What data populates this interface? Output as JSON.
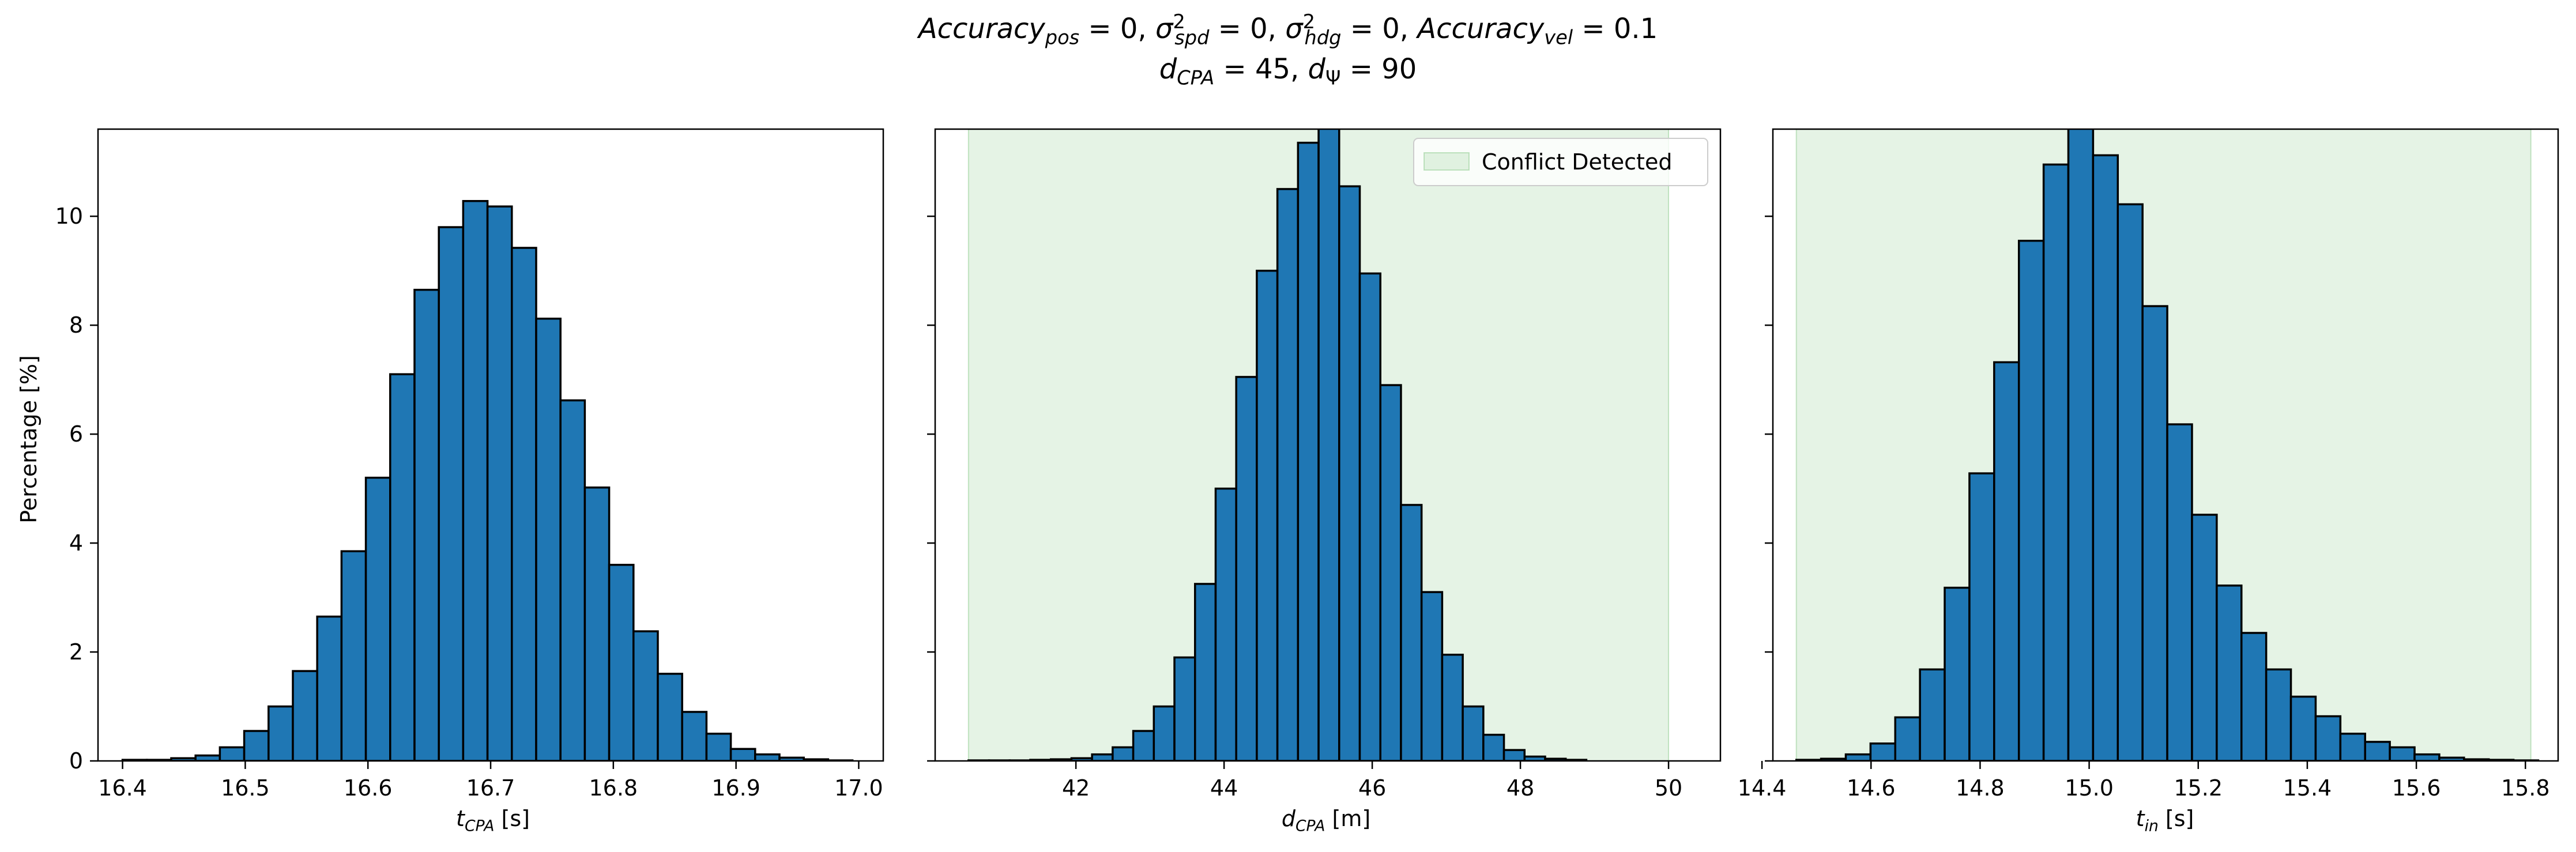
{
  "figure": {
    "title_line1": {
      "acc_pos_label": "Accuracy",
      "acc_pos_sub": "pos",
      "acc_pos_val": " = 0, ",
      "sigma_spd_label": "σ",
      "sigma_spd_sup": "2",
      "sigma_spd_sub": "spd",
      "sigma_spd_val": " = 0, ",
      "sigma_hdg_label": "σ",
      "sigma_hdg_sup": "2",
      "sigma_hdg_sub": "hdg",
      "sigma_hdg_val": " = 0, ",
      "acc_vel_label": "Accuracy",
      "acc_vel_sub": "vel",
      "acc_vel_val": " = 0.1"
    },
    "title_line2": {
      "dcpa_label": "d",
      "dcpa_sub": "CPA",
      "dcpa_val": " = 45, ",
      "dpsi_label": "d",
      "dpsi_sub": "Ψ",
      "dpsi_val": " = 90"
    },
    "ylabel": "Percentage [%]"
  },
  "colors": {
    "bar_fill": "#1f77b4",
    "bar_edge": "#000000",
    "conflict_fill": "#2ca02c"
  },
  "chart_data": [
    {
      "type": "bar",
      "xlabel_var": "t",
      "xlabel_sub": "CPA",
      "xlabel_unit": " [s]",
      "ylabel": "Percentage [%]",
      "xlim": [
        16.38,
        17.02
      ],
      "ylim": [
        0,
        11.6
      ],
      "xticks": [
        "16.4",
        "16.5",
        "16.6",
        "16.7",
        "16.8",
        "16.9",
        "17.0"
      ],
      "xtick_values": [
        16.4,
        16.5,
        16.6,
        16.7,
        16.8,
        16.9,
        17.0
      ],
      "yticks": [
        "0",
        "2",
        "4",
        "6",
        "8",
        "10"
      ],
      "ytick_values": [
        0,
        2,
        4,
        6,
        8,
        10
      ],
      "bin_start": 16.4,
      "bin_width": 0.01983,
      "values": [
        0.02,
        0.02,
        0.05,
        0.1,
        0.25,
        0.55,
        1.0,
        1.65,
        2.65,
        3.85,
        5.2,
        7.1,
        8.65,
        9.8,
        10.28,
        10.18,
        9.42,
        8.12,
        6.62,
        5.02,
        3.6,
        2.38,
        1.6,
        0.9,
        0.5,
        0.22,
        0.12,
        0.06,
        0.03,
        0.01
      ],
      "conflict_region": null,
      "legend": null
    },
    {
      "type": "bar",
      "xlabel_var": "d",
      "xlabel_sub": "CPA",
      "xlabel_unit": " [m]",
      "xlim": [
        40.1,
        50.7
      ],
      "ylim": [
        0,
        11.6
      ],
      "xticks": [
        "42",
        "44",
        "46",
        "48",
        "50"
      ],
      "xtick_values": [
        42,
        44,
        46,
        48,
        50
      ],
      "yticks": [
        "0",
        "2",
        "4",
        "6",
        "8",
        "10"
      ],
      "ytick_values": [
        0,
        2,
        4,
        6,
        8,
        10
      ],
      "bin_start": 40.55,
      "bin_width": 0.278,
      "values": [
        0.01,
        0.01,
        0.01,
        0.02,
        0.03,
        0.05,
        0.12,
        0.25,
        0.55,
        1.0,
        1.9,
        3.25,
        5.0,
        7.05,
        9.0,
        10.5,
        11.35,
        11.65,
        10.55,
        8.95,
        6.9,
        4.7,
        3.1,
        1.95,
        1.0,
        0.48,
        0.2,
        0.08,
        0.04,
        0.02
      ],
      "conflict_region": [
        40.55,
        50.0
      ],
      "legend": "Conflict Detected"
    },
    {
      "type": "bar",
      "xlabel_var": "t",
      "xlabel_sub": "in",
      "xlabel_unit": " [s]",
      "xlim": [
        14.42,
        15.86
      ],
      "ylim": [
        0,
        11.6
      ],
      "xticks": [
        "14.4",
        "14.6",
        "14.8",
        "15.0",
        "15.2",
        "15.4",
        "15.6",
        "15.8"
      ],
      "xtick_values": [
        14.4,
        14.6,
        14.8,
        15.0,
        15.2,
        15.4,
        15.6,
        15.8
      ],
      "yticks": [
        "0",
        "2",
        "4",
        "6",
        "8",
        "10"
      ],
      "ytick_values": [
        0,
        2,
        4,
        6,
        8,
        10
      ],
      "bin_start": 14.463,
      "bin_width": 0.04535,
      "values": [
        0.02,
        0.04,
        0.12,
        0.32,
        0.8,
        1.68,
        3.18,
        5.28,
        7.32,
        9.55,
        10.95,
        11.68,
        11.12,
        10.22,
        8.35,
        6.18,
        4.52,
        3.22,
        2.35,
        1.68,
        1.18,
        0.82,
        0.5,
        0.35,
        0.25,
        0.12,
        0.06,
        0.03,
        0.02,
        0.01
      ],
      "conflict_region": [
        14.463,
        15.81
      ],
      "legend": null
    }
  ]
}
